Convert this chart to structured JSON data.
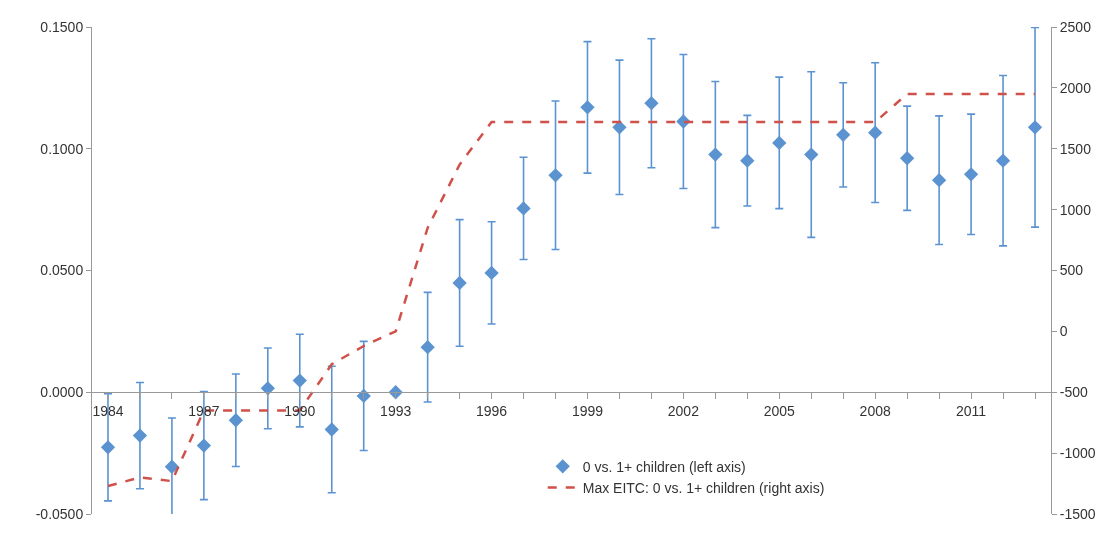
{
  "chart_data": {
    "type": "scatter",
    "x": [
      1984,
      1985,
      1986,
      1987,
      1988,
      1989,
      1990,
      1991,
      1992,
      1993,
      1994,
      1995,
      1996,
      1997,
      1998,
      1999,
      2000,
      2001,
      2002,
      2003,
      2004,
      2005,
      2006,
      2007,
      2008,
      2009,
      2010,
      2011,
      2012,
      2013
    ],
    "xlim": [
      1983.5,
      2013.5
    ],
    "xticks": [
      {
        "value": 1984,
        "label": "1984"
      },
      {
        "value": 1985,
        "label": null
      },
      {
        "value": 1986,
        "label": null
      },
      {
        "value": 1987,
        "label": "1987"
      },
      {
        "value": 1988,
        "label": null
      },
      {
        "value": 1989,
        "label": null
      },
      {
        "value": 1990,
        "label": "1990"
      },
      {
        "value": 1991,
        "label": null
      },
      {
        "value": 1992,
        "label": null
      },
      {
        "value": 1993,
        "label": "1993"
      },
      {
        "value": 1994,
        "label": null
      },
      {
        "value": 1995,
        "label": null
      },
      {
        "value": 1996,
        "label": "1996"
      },
      {
        "value": 1997,
        "label": null
      },
      {
        "value": 1998,
        "label": null
      },
      {
        "value": 1999,
        "label": "1999"
      },
      {
        "value": 2000,
        "label": null
      },
      {
        "value": 2001,
        "label": null
      },
      {
        "value": 2002,
        "label": "2002"
      },
      {
        "value": 2003,
        "label": null
      },
      {
        "value": 2004,
        "label": null
      },
      {
        "value": 2005,
        "label": "2005"
      },
      {
        "value": 2006,
        "label": null
      },
      {
        "value": 2007,
        "label": null
      },
      {
        "value": 2008,
        "label": "2008"
      },
      {
        "value": 2009,
        "label": null
      },
      {
        "value": 2010,
        "label": null
      },
      {
        "value": 2011,
        "label": "2011"
      },
      {
        "value": 2012,
        "label": null
      },
      {
        "value": 2013,
        "label": null
      }
    ],
    "ylim": [
      -0.05,
      0.15
    ],
    "yticks": [
      {
        "value": -0.05,
        "label": "-0.0500"
      },
      {
        "value": 0,
        "label": "0.0000"
      },
      {
        "value": 0.05,
        "label": "0.0500"
      },
      {
        "value": 0.1,
        "label": "0.1000"
      },
      {
        "value": 0.15,
        "label": "0.1500"
      }
    ],
    "y2lim": [
      -1500,
      2500
    ],
    "y2ticks": [
      -1500,
      -1000,
      -500,
      0,
      500,
      1000,
      1500,
      2000,
      2500
    ],
    "grid": false,
    "legend": "bottom",
    "series": [
      {
        "name": "0 vs. 1+ children (left axis)",
        "color": "#5b93d0",
        "marker": "diamond",
        "values": [
          -0.0226,
          -0.0178,
          -0.0306,
          -0.0219,
          -0.0115,
          0.0016,
          0.0048,
          -0.0153,
          -0.0015,
          0.0,
          0.0185,
          0.0449,
          0.049,
          0.0755,
          0.0891,
          0.117,
          0.1088,
          0.1187,
          0.1112,
          0.0976,
          0.0951,
          0.1024,
          0.0976,
          0.1057,
          0.1066,
          0.0961,
          0.0871,
          0.0895,
          0.0951,
          0.1088
        ],
        "errors": [
          0.022,
          0.0218,
          0.02,
          0.0222,
          0.019,
          0.0166,
          0.019,
          0.026,
          0.0224,
          null,
          0.0225,
          0.026,
          0.021,
          0.021,
          0.0305,
          0.027,
          0.0276,
          0.0265,
          0.0275,
          0.03,
          0.0186,
          0.027,
          0.034,
          0.0214,
          0.0287,
          0.0214,
          0.0264,
          0.0247,
          0.035,
          0.041
        ]
      },
      {
        "name": "Max EITC: 0 vs. 1+ children (right axis)",
        "type": "line",
        "axis": "y2",
        "color": "#d0504a",
        "line_style": "dashed",
        "marker": "none",
        "values": [
          -1270,
          -1200,
          -1230,
          -650,
          -650,
          -650,
          -650,
          -270,
          -120,
          0,
          850,
          1370,
          1720,
          1720,
          1720,
          1720,
          1720,
          1720,
          1720,
          1720,
          1720,
          1720,
          1720,
          1720,
          1720,
          1950,
          1950,
          1950,
          1950,
          1950
        ]
      }
    ]
  }
}
